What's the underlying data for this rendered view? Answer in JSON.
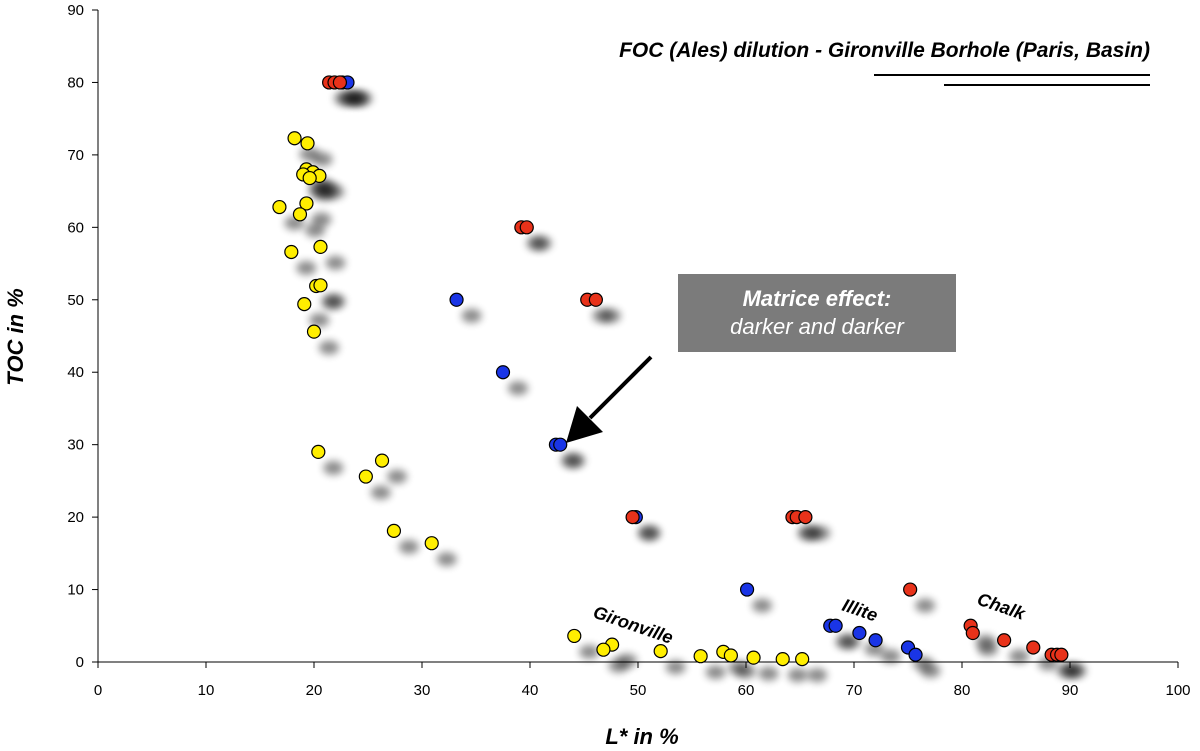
{
  "chart_data": {
    "type": "scatter",
    "title": "FOC  (Ales) dilution - Gironville Borhole (Paris, Basin)",
    "xlabel": "L* in %",
    "ylabel": "TOC in %",
    "xlim": [
      0,
      100
    ],
    "ylim": [
      0,
      90
    ],
    "xticks": [
      0,
      10,
      20,
      30,
      40,
      50,
      60,
      70,
      80,
      90,
      100
    ],
    "yticks": [
      0,
      10,
      20,
      30,
      40,
      50,
      60,
      70,
      80,
      90
    ],
    "grid": false,
    "colors": {
      "yellow": "#ffee00",
      "blue": "#1a35e6",
      "red": "#e8321a"
    },
    "series": [
      {
        "color": "yellow",
        "points": [
          [
            18.2,
            72.3
          ],
          [
            19.4,
            71.6
          ],
          [
            19.3,
            68.0
          ],
          [
            19.9,
            67.6
          ],
          [
            19.0,
            67.3
          ],
          [
            20.5,
            67.1
          ],
          [
            19.6,
            66.8
          ],
          [
            16.8,
            62.8
          ],
          [
            19.3,
            63.3
          ],
          [
            18.7,
            61.8
          ],
          [
            17.9,
            56.6
          ],
          [
            20.6,
            57.3
          ],
          [
            20.2,
            51.9
          ],
          [
            20.6,
            52.0
          ],
          [
            19.1,
            49.4
          ],
          [
            20.0,
            45.6
          ],
          [
            20.4,
            29.0
          ],
          [
            26.3,
            27.8
          ],
          [
            24.8,
            25.6
          ],
          [
            27.4,
            18.1
          ],
          [
            30.9,
            16.4
          ],
          [
            44.1,
            3.6
          ],
          [
            47.6,
            2.4
          ],
          [
            46.8,
            1.7
          ],
          [
            52.1,
            1.5
          ],
          [
            57.9,
            1.4
          ],
          [
            55.8,
            0.8
          ],
          [
            58.6,
            0.9
          ],
          [
            60.7,
            0.6
          ],
          [
            63.4,
            0.4
          ],
          [
            65.2,
            0.4
          ]
        ]
      },
      {
        "color": "blue",
        "points": [
          [
            22.6,
            80.0
          ],
          [
            23.1,
            80.0
          ],
          [
            33.2,
            50.0
          ],
          [
            37.5,
            40.0
          ],
          [
            42.4,
            30.0
          ],
          [
            42.8,
            30.0
          ],
          [
            49.8,
            20.0
          ],
          [
            60.1,
            10.0
          ],
          [
            67.8,
            5.0
          ],
          [
            68.3,
            5.0
          ],
          [
            70.5,
            4.0
          ],
          [
            72.0,
            3.0
          ],
          [
            75.0,
            2.0
          ],
          [
            75.7,
            1.0
          ]
        ]
      },
      {
        "color": "red",
        "points": [
          [
            21.4,
            80.0
          ],
          [
            21.9,
            80.0
          ],
          [
            22.4,
            80.0
          ],
          [
            39.2,
            60.0
          ],
          [
            39.7,
            60.0
          ],
          [
            45.3,
            50.0
          ],
          [
            46.1,
            50.0
          ],
          [
            64.3,
            20.0
          ],
          [
            64.7,
            20.0
          ],
          [
            65.5,
            20.0
          ],
          [
            75.2,
            10.0
          ],
          [
            80.8,
            5.0
          ],
          [
            81.0,
            4.0
          ],
          [
            83.9,
            3.0
          ],
          [
            86.6,
            2.0
          ],
          [
            88.3,
            1.0
          ],
          [
            88.8,
            1.0
          ],
          [
            89.2,
            1.0
          ],
          [
            49.5,
            20.0
          ]
        ]
      }
    ],
    "annotations": {
      "callout_title": "Matrice effect:",
      "callout_text": "darker and darker",
      "group_labels": [
        "Gironville",
        "Illite",
        "Chalk"
      ]
    }
  }
}
